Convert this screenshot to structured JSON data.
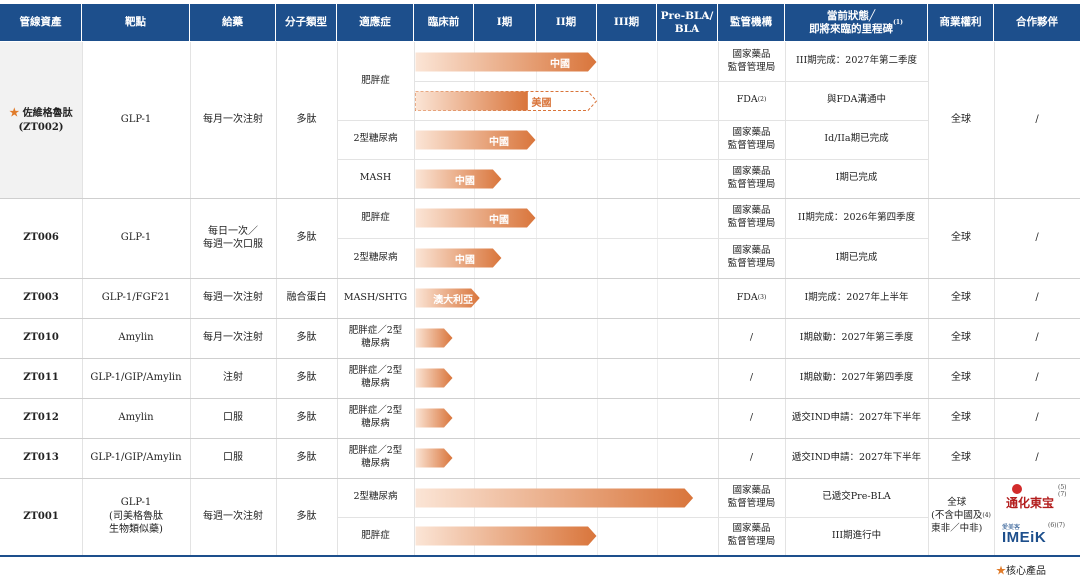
{
  "headers": [
    "管線資產",
    "靶點",
    "給藥",
    "分子類型",
    "適應症",
    "臨床前",
    "I期",
    "II期",
    "III期",
    "Pre-BLA/\nBLA",
    "監管機構",
    "當前狀態╱\n即將來臨的里程碑",
    "商業權利",
    "合作夥伴"
  ],
  "header_note": "(1)",
  "assets": {
    "zt002": {
      "name": "佐維格魯肽",
      "code": "(ZT002)",
      "target": "GLP-1",
      "dosing": "每月一次注射",
      "molecule": "多肽",
      "rights": "全球",
      "partner": "/"
    },
    "zt006": {
      "name": "ZT006",
      "target": "GLP-1",
      "dosing": "每日一次／\n每週一次口服",
      "molecule": "多肽",
      "rights": "全球",
      "partner": "/"
    },
    "zt003": {
      "name": "ZT003",
      "target": "GLP-1/FGF21",
      "dosing": "每週一次注射",
      "molecule": "融合蛋白",
      "rights": "全球",
      "partner": "/"
    },
    "zt010": {
      "name": "ZT010",
      "target": "Amylin",
      "dosing": "每月一次注射",
      "molecule": "多肽",
      "rights": "全球",
      "partner": "/"
    },
    "zt011": {
      "name": "ZT011",
      "target": "GLP-1/GIP/Amylin",
      "dosing": "注射",
      "molecule": "多肽",
      "rights": "全球",
      "partner": "/"
    },
    "zt012": {
      "name": "ZT012",
      "target": "Amylin",
      "dosing": "口服",
      "molecule": "多肽",
      "rights": "全球",
      "partner": "/"
    },
    "zt013": {
      "name": "ZT013",
      "target": "GLP-1/GIP/Amylin",
      "dosing": "口服",
      "molecule": "多肽",
      "rights": "全球",
      "partner": "/"
    },
    "zt001": {
      "name": "ZT001",
      "target": "GLP-1\n(司美格魯肽\n生物類似藥)",
      "dosing": "每週一次注射",
      "molecule": "多肽",
      "rights": "全球\n(不含中國及\n東非／中非)",
      "rights_note": "(4)",
      "partner1": "通化東宝",
      "partner1_note": "(5)(7)",
      "partner2": "IMEiK",
      "partner2_sub": "愛美客",
      "partner2_note": "(6)(7)"
    }
  },
  "rows": [
    {
      "indication": "肥胖症",
      "regulator": "國家藥品\n監督管理局",
      "status": "III期完成：2027年第二季度",
      "bar_label": "中國",
      "stage_progress": 3.0,
      "dashed": false
    },
    {
      "indication": "",
      "regulator": "FDA",
      "regulator_note": "(2)",
      "status": "與FDA溝通中",
      "bar_label": "美國",
      "stage_progress": 3.0,
      "dashed": true
    },
    {
      "indication": "2型糖尿病",
      "regulator": "國家藥品\n監督管理局",
      "status": "Id/IIa期已完成",
      "bar_label": "中國",
      "stage_progress": 2.0,
      "dashed": false
    },
    {
      "indication": "MASH",
      "regulator": "國家藥品\n監督管理局",
      "status": "I期已完成",
      "bar_label": "中國",
      "stage_progress": 1.45,
      "dashed": false
    },
    {
      "indication": "肥胖症",
      "regulator": "國家藥品\n監督管理局",
      "status": "II期完成：2026年第四季度",
      "bar_label": "中國",
      "stage_progress": 2.0,
      "dashed": false
    },
    {
      "indication": "2型糖尿病",
      "regulator": "國家藥品\n監督管理局",
      "status": "I期已完成",
      "bar_label": "中國",
      "stage_progress": 1.45,
      "dashed": false
    },
    {
      "indication": "MASH/SHTG",
      "regulator": "FDA",
      "regulator_note": "(3)",
      "status": "I期完成：2027年上半年",
      "bar_label": "澳大利亞",
      "stage_progress": 1.1,
      "dashed": false
    },
    {
      "indication": "肥胖症／2型\n糖尿病",
      "regulator": "/",
      "status": "I期啟動：2027年第三季度",
      "bar_label": "",
      "stage_progress": 0.65,
      "dashed": false
    },
    {
      "indication": "肥胖症／2型\n糖尿病",
      "regulator": "/",
      "status": "I期啟動：2027年第四季度",
      "bar_label": "",
      "stage_progress": 0.65,
      "dashed": false
    },
    {
      "indication": "肥胖症／2型\n糖尿病",
      "regulator": "/",
      "status": "遞交IND申請：2027年下半年",
      "bar_label": "",
      "stage_progress": 0.65,
      "dashed": false
    },
    {
      "indication": "肥胖症／2型\n糖尿病",
      "regulator": "/",
      "status": "遞交IND申請：2027年下半年",
      "bar_label": "",
      "stage_progress": 0.65,
      "dashed": false
    },
    {
      "indication": "2型糖尿病",
      "regulator": "國家藥品\n監督管理局",
      "status": "已遞交Pre-BLA",
      "bar_label": "",
      "stage_progress": 4.6,
      "dashed": false
    },
    {
      "indication": "肥胖症",
      "regulator": "國家藥品\n監督管理局",
      "status": "III期進行中",
      "bar_label": "",
      "stage_progress": 3.0,
      "dashed": false
    }
  ],
  "legend": "核心產品",
  "colors": {
    "header": "#1d4f8c",
    "bar_start": "#fbe5d6",
    "bar_end": "#d9753b",
    "star": "#e07b2a",
    "text": "#222222"
  }
}
